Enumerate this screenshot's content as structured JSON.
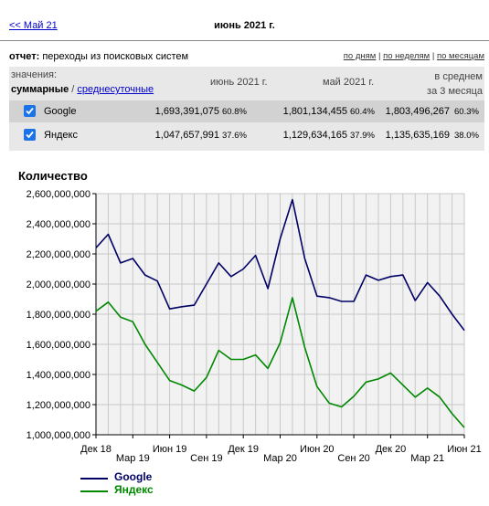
{
  "header": {
    "prev_link": "<< Май 21",
    "title": "июнь 2021 г."
  },
  "report": {
    "label": "отчет:",
    "text": "переходы из поисковых систем",
    "views": [
      "по дням",
      "по неделям",
      "по месяцам"
    ]
  },
  "table": {
    "values_label": "значения:",
    "mode_total": "суммарные",
    "mode_sep": " / ",
    "mode_daily": "среднесуточные",
    "col1": "июнь 2021 г.",
    "col2": "май 2021 г.",
    "col3_line1": "в среднем",
    "col3_line2": "за 3 месяца",
    "rows": [
      {
        "name": "Google",
        "v1": "1,693,391,075",
        "p1": "60.8%",
        "v2": "1,801,134,455",
        "p2": "60.4%",
        "v3": "1,803,496,267",
        "p3": "60.3%"
      },
      {
        "name": "Яндекс",
        "v1": "1,047,657,991",
        "p1": "37.6%",
        "v2": "1,129,634,165",
        "p2": "37.9%",
        "v3": "1,135,635,169",
        "p3": "38.0%"
      }
    ]
  },
  "colors": {
    "google": "#000066",
    "yandex": "#008800"
  },
  "chart_data": {
    "type": "line",
    "title": "Количество",
    "ylim": [
      1000000000,
      2600000000
    ],
    "y_ticks": [
      1000000000,
      1200000000,
      1400000000,
      1600000000,
      1800000000,
      2000000000,
      2200000000,
      2400000000,
      2600000000
    ],
    "y_tick_labels": [
      "1,000,000,000",
      "1,200,000,000",
      "1,400,000,000",
      "1,600,000,000",
      "1,800,000,000",
      "2,000,000,000",
      "2,200,000,000",
      "2,400,000,000",
      "2,600,000,000"
    ],
    "x_labels": [
      "Дек 18",
      "Мар 19",
      "Июн 19",
      "Сен 19",
      "Дек 19",
      "Мар 20",
      "Июн 20",
      "Сен 20",
      "Дек 20",
      "Мар 21",
      "Июн 21"
    ],
    "grid": true,
    "legend_position": "bottom-left",
    "series": [
      {
        "name": "Google",
        "values": [
          2240000000,
          2330000000,
          2140000000,
          2170000000,
          2060000000,
          2020000000,
          1835000000,
          1850000000,
          1860000000,
          2000000000,
          2140000000,
          2050000000,
          2100000000,
          2190000000,
          1970000000,
          2300000000,
          2560000000,
          2170000000,
          1920000000,
          1910000000,
          1885000000,
          1885000000,
          2060000000,
          2025000000,
          2050000000,
          2060000000,
          1890000000,
          2010000000,
          1920000000,
          1800000000,
          1693000000
        ]
      },
      {
        "name": "Яндекс",
        "values": [
          1820000000,
          1880000000,
          1780000000,
          1750000000,
          1600000000,
          1480000000,
          1360000000,
          1330000000,
          1290000000,
          1380000000,
          1560000000,
          1500000000,
          1500000000,
          1530000000,
          1440000000,
          1610000000,
          1910000000,
          1580000000,
          1320000000,
          1210000000,
          1185000000,
          1255000000,
          1350000000,
          1370000000,
          1410000000,
          1330000000,
          1250000000,
          1310000000,
          1250000000,
          1140000000,
          1048000000
        ]
      }
    ]
  }
}
